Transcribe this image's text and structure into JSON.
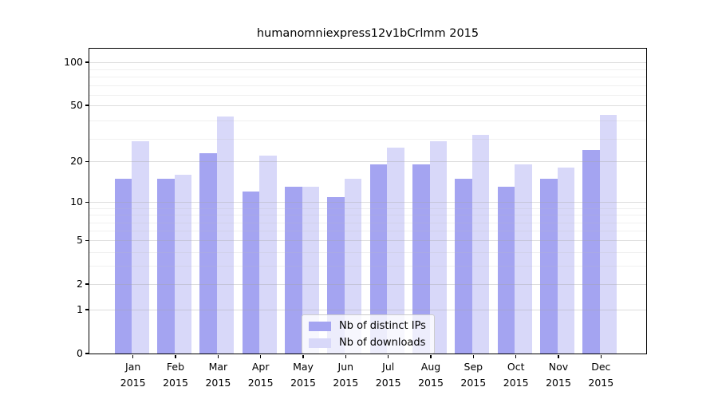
{
  "title": "humanomniexpress12v1bCrlmm 2015",
  "chart_data": {
    "type": "bar",
    "title": "humanomniexpress12v1bCrlmm 2015",
    "y_scale": "log10(1+x)",
    "categories": [
      "Jan",
      "Feb",
      "Mar",
      "Apr",
      "May",
      "Jun",
      "Jul",
      "Aug",
      "Sep",
      "Oct",
      "Nov",
      "Dec"
    ],
    "year": "2015",
    "series": [
      {
        "name": "Nb of distinct IPs",
        "color": "#a4a4f1",
        "values": [
          15,
          15,
          23,
          12,
          13,
          11,
          19,
          19,
          15,
          13,
          15,
          24
        ]
      },
      {
        "name": "Nb of downloads",
        "color": "#d8d8f9",
        "values": [
          28,
          16,
          42,
          22,
          13,
          15,
          25,
          28,
          31,
          19,
          18,
          43
        ]
      }
    ],
    "yticks": [
      100,
      50,
      20,
      10,
      5,
      2,
      1,
      0
    ],
    "minor_gridlines_at": [
      3,
      4,
      6,
      7,
      8,
      9,
      29,
      39,
      59,
      69,
      79,
      89
    ],
    "ylim": [
      0,
      123
    ],
    "xlabel": "",
    "ylabel": "",
    "grid": true,
    "legend_position": "bottom-center",
    "major_grid_color": "rgba(165,165,165,0.38)",
    "minor_grid_color": "rgba(185,185,185,0.22)"
  }
}
